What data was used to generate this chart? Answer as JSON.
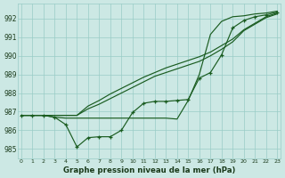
{
  "xlabel": "Graphe pression niveau de la mer (hPa)",
  "background_color": "#cce8e4",
  "grid_color": "#99ccc6",
  "line_color": "#1a5c20",
  "text_color": "#1a3a1a",
  "xlim": [
    -0.3,
    23.3
  ],
  "ylim": [
    984.5,
    992.8
  ],
  "yticks": [
    985,
    986,
    987,
    988,
    989,
    990,
    991,
    992
  ],
  "xticks": [
    0,
    1,
    2,
    3,
    4,
    5,
    6,
    7,
    8,
    9,
    10,
    11,
    12,
    13,
    14,
    15,
    16,
    17,
    18,
    19,
    20,
    21,
    22,
    23
  ],
  "hours": [
    0,
    1,
    2,
    3,
    4,
    5,
    6,
    7,
    8,
    9,
    10,
    11,
    12,
    13,
    14,
    15,
    16,
    17,
    18,
    19,
    20,
    21,
    22,
    23
  ],
  "line_marker": [
    986.8,
    986.8,
    986.8,
    986.7,
    986.3,
    985.1,
    985.6,
    985.65,
    985.65,
    986.0,
    986.95,
    987.45,
    987.55,
    987.55,
    987.6,
    987.65,
    988.8,
    989.1,
    990.05,
    991.5,
    991.9,
    992.1,
    992.2,
    992.35
  ],
  "line_flat": [
    986.8,
    986.8,
    986.8,
    986.7,
    986.65,
    986.65,
    986.65,
    986.65,
    986.65,
    986.65,
    986.65,
    986.65,
    986.65,
    986.65,
    986.6,
    987.6,
    989.0,
    991.15,
    991.85,
    992.1,
    992.15,
    992.25,
    992.3,
    992.4
  ],
  "line_smooth1": [
    986.8,
    986.8,
    986.8,
    986.8,
    986.8,
    986.8,
    987.3,
    987.6,
    987.95,
    988.25,
    988.55,
    988.85,
    989.1,
    989.35,
    989.55,
    989.75,
    989.95,
    990.2,
    990.55,
    990.9,
    991.4,
    991.75,
    992.1,
    992.3
  ],
  "line_smooth2": [
    986.8,
    986.8,
    986.8,
    986.8,
    986.8,
    986.8,
    987.15,
    987.4,
    987.7,
    988.0,
    988.3,
    988.6,
    988.9,
    989.1,
    989.3,
    989.5,
    989.7,
    990.0,
    990.35,
    990.75,
    991.35,
    991.7,
    992.05,
    992.25
  ]
}
